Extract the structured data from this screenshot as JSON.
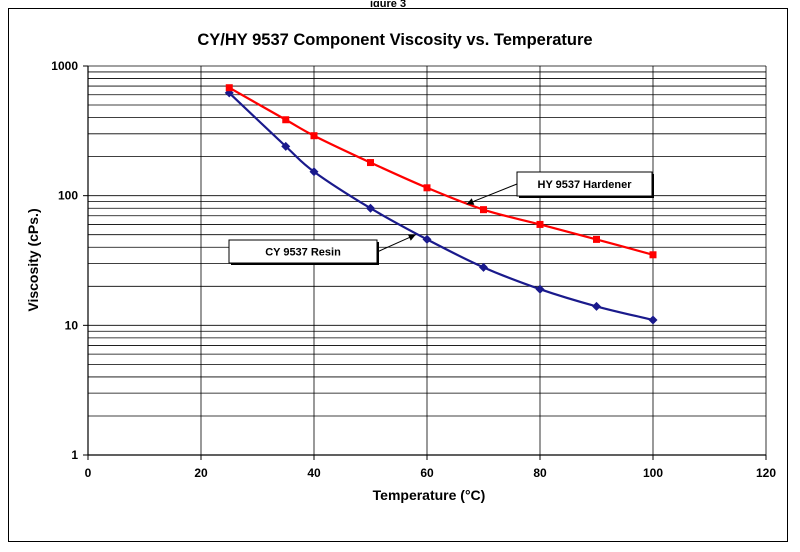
{
  "figure_caption_fragment": "igure 3",
  "chart_data": {
    "type": "line",
    "title": "CY/HY 9537 Component Viscosity vs. Temperature",
    "xlabel": "Temperature (°C)",
    "ylabel": "Viscosity (cPs.)",
    "xlim": [
      0,
      120
    ],
    "ylim": [
      1,
      1000
    ],
    "y_scale": "log",
    "x_ticks": [
      0,
      20,
      40,
      60,
      80,
      100,
      120
    ],
    "y_ticks": [
      1,
      10,
      100,
      1000
    ],
    "x_tick_labels": [
      "0",
      "20",
      "40",
      "60",
      "80",
      "100",
      "120"
    ],
    "y_tick_labels": [
      "1",
      "10",
      "100",
      "1000"
    ],
    "grid": true,
    "legend": "none",
    "series": [
      {
        "name": "CY 9537 Resin",
        "color": "#1a1a8c",
        "marker": "diamond",
        "x": [
          25,
          35,
          40,
          50,
          60,
          70,
          80,
          90,
          100
        ],
        "y": [
          620,
          240,
          153,
          80,
          46,
          28,
          19,
          14,
          11
        ]
      },
      {
        "name": "HY 9537 Hardener",
        "color": "#ff0000",
        "marker": "square",
        "x": [
          25,
          35,
          40,
          50,
          60,
          70,
          80,
          90,
          100
        ],
        "y": [
          680,
          385,
          290,
          180,
          115,
          78,
          60,
          46,
          35
        ]
      }
    ],
    "annotations": [
      {
        "text": "HY 9537 Hardener",
        "points_to_series": 1,
        "target_x": 67,
        "target_y": 86
      },
      {
        "text": "CY 9537 Resin",
        "points_to_series": 0,
        "target_x": 58,
        "target_y": 50
      }
    ]
  }
}
